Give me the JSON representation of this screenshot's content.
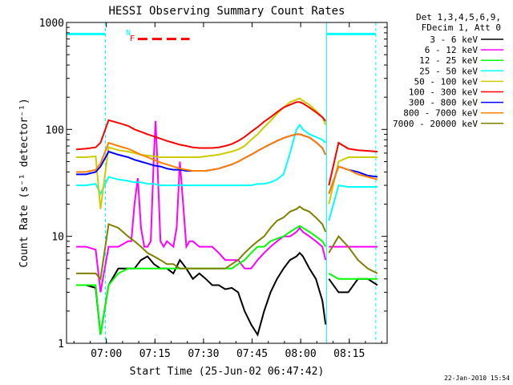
{
  "chart_data": {
    "type": "line",
    "title": "HESSI Observing Summary Count Rates",
    "xlabel": "Start Time (25-Jun-02 06:47:42)",
    "ylabel": "Count Rate (s⁻¹ detector⁻¹)",
    "x_unit": "minutes after 06:47:42",
    "xlim": [
      0,
      99
    ],
    "ylim": [
      1,
      1000
    ],
    "y_scale": "log",
    "x_ticks": [
      {
        "v": 12.3,
        "label": "07:00"
      },
      {
        "v": 27.3,
        "label": "07:15"
      },
      {
        "v": 42.3,
        "label": "07:30"
      },
      {
        "v": 57.3,
        "label": "07:45"
      },
      {
        "v": 72.3,
        "label": "08:00"
      },
      {
        "v": 87.3,
        "label": "08:15"
      }
    ],
    "y_ticks": [
      {
        "v": 1,
        "label": "1"
      },
      {
        "v": 10,
        "label": "10"
      },
      {
        "v": 100,
        "label": "100"
      },
      {
        "v": 1000,
        "label": "1000"
      }
    ],
    "legend": {
      "placement": "right",
      "header": [
        "Det 1,3,4,5,6,9,",
        "FDecim 1, Att 0"
      ]
    },
    "flags": [
      {
        "label": "N",
        "color": "#00ffff"
      },
      {
        "label": "F",
        "color": "#ff0000"
      }
    ],
    "timestamp": "22-Jan-2010 15:54",
    "night_lines": [
      {
        "x": 12.0,
        "style": "dashed"
      },
      {
        "x": 80.3,
        "style": "solid"
      },
      {
        "x": 95.5,
        "style": "dashed"
      }
    ],
    "saa_bars": [
      [
        0,
        12.0
      ],
      [
        80.3,
        95.5
      ]
    ],
    "flare_bar": [
      22,
      38
    ],
    "series": [
      {
        "name": "3 - 6 keV",
        "color": "#000000",
        "x": [
          3,
          6,
          9,
          10.5,
          13,
          16,
          19,
          21,
          23,
          25,
          27,
          29,
          31,
          33,
          35,
          37,
          39,
          41,
          43,
          45,
          47,
          49,
          51,
          53,
          55,
          57,
          59,
          61,
          63,
          65,
          67,
          69,
          71,
          72,
          73,
          75,
          77,
          79,
          80
        ],
        "y": [
          3.5,
          3.5,
          3.3,
          1.2,
          3.5,
          5,
          5,
          5,
          6,
          6.5,
          5.5,
          5,
          5,
          4.5,
          6,
          5,
          4,
          4.5,
          4,
          3.5,
          3.5,
          3.2,
          3.3,
          3,
          2,
          1.5,
          1.2,
          2,
          3,
          4,
          5,
          6,
          6.5,
          7,
          6.5,
          5,
          4,
          2.5,
          1.5
        ]
      },
      {
        "name": "6 - 12 keV",
        "color": "#ff00ff",
        "x": [
          3,
          6,
          9,
          10.5,
          13,
          16,
          19,
          20,
          21,
          22,
          23,
          24,
          25,
          26,
          27,
          27.5,
          28,
          29,
          30,
          31,
          33,
          34,
          35,
          36,
          37,
          38,
          39,
          41,
          43,
          45,
          47,
          49,
          51,
          53,
          55,
          57,
          59,
          61,
          63,
          65,
          67,
          69,
          71,
          72,
          73,
          75,
          77,
          79,
          80
        ],
        "y": [
          8,
          8,
          7.5,
          3,
          8,
          8,
          9,
          9,
          20,
          35,
          12,
          8,
          8,
          9,
          60,
          120,
          55,
          9,
          8,
          9,
          8,
          12,
          50,
          20,
          8,
          9,
          9,
          8,
          8,
          8,
          7,
          6,
          6,
          6,
          5,
          5,
          6,
          7,
          8,
          9,
          10,
          10,
          11,
          12,
          11,
          10,
          9,
          8,
          6
        ]
      },
      {
        "name": "12 - 25 keV",
        "color": "#00ff00",
        "x": [
          3,
          6,
          9,
          10.5,
          13,
          16,
          19,
          21,
          23,
          25,
          27,
          29,
          31,
          33,
          35,
          37,
          39,
          41,
          43,
          45,
          47,
          49,
          51,
          53,
          55,
          57,
          59,
          61,
          63,
          65,
          67,
          69,
          71,
          72,
          73,
          75,
          77,
          79,
          80
        ],
        "y": [
          3.5,
          3.5,
          3.5,
          1.2,
          3.5,
          4.5,
          5,
          5,
          5,
          5,
          5,
          5,
          5,
          5,
          5,
          5,
          5,
          5,
          5,
          5,
          5,
          5,
          5,
          5.5,
          6,
          7,
          8,
          8,
          9,
          9.5,
          10,
          11,
          12,
          12.5,
          12,
          11,
          10,
          9,
          8
        ]
      },
      {
        "name": "25 - 50 keV",
        "color": "#00ffff",
        "x": [
          3,
          6,
          9,
          10.5,
          13,
          16,
          19,
          21,
          23,
          25,
          27,
          29,
          31,
          33,
          35,
          37,
          39,
          41,
          43,
          45,
          47,
          49,
          51,
          53,
          55,
          57,
          59,
          61,
          63,
          65,
          67,
          69,
          71,
          72,
          73,
          75,
          77,
          79,
          80
        ],
        "y": [
          30,
          30,
          31,
          25,
          36,
          34,
          33,
          32,
          32,
          31,
          31,
          30,
          30,
          30,
          30,
          30,
          30,
          30,
          30,
          30,
          30,
          30,
          30,
          30,
          30,
          30,
          31,
          31,
          32,
          34,
          38,
          60,
          100,
          110,
          100,
          90,
          85,
          80,
          75
        ]
      },
      {
        "name": "50 - 100 keV",
        "color": "#cccc00",
        "x": [
          3,
          6,
          9,
          10.5,
          13,
          16,
          19,
          21,
          23,
          25,
          27,
          29,
          31,
          33,
          35,
          37,
          39,
          41,
          43,
          45,
          47,
          49,
          51,
          53,
          55,
          57,
          59,
          61,
          63,
          65,
          67,
          69,
          71,
          72,
          73,
          75,
          77,
          79,
          80
        ],
        "y": [
          55,
          55,
          56,
          18,
          68,
          64,
          62,
          60,
          58,
          57,
          56,
          55,
          55,
          55,
          55,
          55,
          55,
          55,
          56,
          57,
          58,
          60,
          62,
          65,
          70,
          80,
          90,
          105,
          120,
          140,
          160,
          180,
          190,
          195,
          185,
          170,
          150,
          130,
          110
        ]
      },
      {
        "name": "100 - 300 keV",
        "color": "#ff0000",
        "x": [
          3,
          6,
          9,
          10.5,
          13,
          16,
          19,
          21,
          23,
          25,
          27,
          29,
          31,
          33,
          35,
          37,
          39,
          41,
          43,
          45,
          47,
          49,
          51,
          53,
          55,
          57,
          59,
          61,
          63,
          65,
          67,
          69,
          71,
          72,
          73,
          75,
          77,
          79,
          80
        ],
        "y": [
          65,
          66,
          68,
          75,
          122,
          115,
          108,
          100,
          95,
          90,
          86,
          82,
          78,
          75,
          72,
          70,
          68,
          67,
          67,
          67,
          68,
          70,
          73,
          78,
          85,
          95,
          105,
          118,
          130,
          145,
          160,
          170,
          180,
          180,
          175,
          160,
          145,
          130,
          120
        ]
      },
      {
        "name": "300 - 800 keV",
        "color": "#0000ff",
        "x": [
          3,
          6,
          9,
          10.5,
          13,
          16,
          19,
          21,
          23,
          25,
          27,
          29,
          31,
          33,
          35,
          37,
          39,
          41,
          43,
          45,
          47,
          49,
          51,
          53,
          55,
          57,
          59,
          61,
          63,
          65,
          67,
          69,
          71,
          72,
          73,
          75,
          77,
          79,
          80
        ],
        "y": [
          38,
          38,
          40,
          45,
          62,
          58,
          55,
          52,
          50,
          48,
          46,
          45,
          43,
          42,
          42,
          41,
          41,
          41,
          41,
          42,
          43,
          45,
          47,
          50,
          54,
          58,
          63,
          68,
          73,
          78,
          83,
          87,
          90,
          90,
          88,
          84,
          76,
          67,
          58
        ]
      },
      {
        "name": "800 - 7000 keV",
        "color": "#ff8000",
        "x": [
          3,
          6,
          9,
          10.5,
          13,
          16,
          19,
          21,
          23,
          25,
          27,
          29,
          31,
          33,
          35,
          37,
          39,
          41,
          43,
          45,
          47,
          49,
          51,
          53,
          55,
          57,
          59,
          61,
          63,
          65,
          67,
          69,
          71,
          72,
          73,
          75,
          77,
          79,
          80
        ],
        "y": [
          40,
          40,
          42,
          48,
          75,
          70,
          66,
          62,
          58,
          55,
          52,
          49,
          47,
          45,
          43,
          42,
          41,
          41,
          41,
          42,
          43,
          45,
          47,
          50,
          54,
          58,
          63,
          68,
          73,
          78,
          83,
          87,
          90,
          90,
          88,
          84,
          76,
          67,
          58
        ]
      },
      {
        "name": "7000 - 20000 keV",
        "color": "#808000",
        "x": [
          3,
          6,
          9,
          10.5,
          13,
          16,
          19,
          21,
          23,
          25,
          27,
          29,
          31,
          33,
          35,
          37,
          39,
          41,
          43,
          45,
          47,
          49,
          51,
          53,
          55,
          57,
          59,
          61,
          63,
          65,
          67,
          69,
          71,
          72,
          73,
          75,
          77,
          79,
          80
        ],
        "y": [
          4.5,
          4.5,
          4.5,
          4,
          13,
          12,
          10,
          9,
          8,
          7,
          6.5,
          6,
          5.5,
          5.5,
          5,
          5,
          5,
          5,
          5,
          5,
          5,
          5,
          5.5,
          6,
          7,
          8,
          9,
          10,
          12,
          14,
          15,
          17,
          18,
          19,
          18,
          17,
          15,
          13,
          11
        ]
      }
    ],
    "series_right": [
      {
        "x": [
          81,
          84,
          87,
          90,
          93,
          96
        ],
        "y": [
          4,
          3,
          3,
          4,
          4,
          3.5
        ]
      },
      {
        "x": [
          81,
          84,
          87,
          90,
          93,
          96
        ],
        "y": [
          8,
          8,
          8,
          8,
          8,
          8
        ]
      },
      {
        "x": [
          81,
          84,
          87,
          90,
          93,
          96
        ],
        "y": [
          4.5,
          4,
          4,
          4,
          4,
          4
        ]
      },
      {
        "x": [
          81,
          84,
          87,
          90,
          93,
          96
        ],
        "y": [
          14,
          30,
          29,
          29,
          29,
          29
        ]
      },
      {
        "x": [
          81,
          84,
          87,
          90,
          93,
          96
        ],
        "y": [
          20,
          50,
          55,
          55,
          55,
          55
        ]
      },
      {
        "x": [
          81,
          84,
          87,
          90,
          93,
          96
        ],
        "y": [
          30,
          75,
          66,
          64,
          63,
          62
        ]
      },
      {
        "x": [
          81,
          84,
          87,
          90,
          93,
          96
        ],
        "y": [
          25,
          45,
          42,
          40,
          37,
          36
        ]
      },
      {
        "x": [
          81,
          84,
          87,
          90,
          93,
          96
        ],
        "y": [
          25,
          45,
          42,
          38,
          36,
          34
        ]
      },
      {
        "x": [
          81,
          84,
          87,
          90,
          93,
          96
        ],
        "y": [
          7,
          10,
          8,
          6,
          5,
          4.5
        ]
      }
    ]
  }
}
